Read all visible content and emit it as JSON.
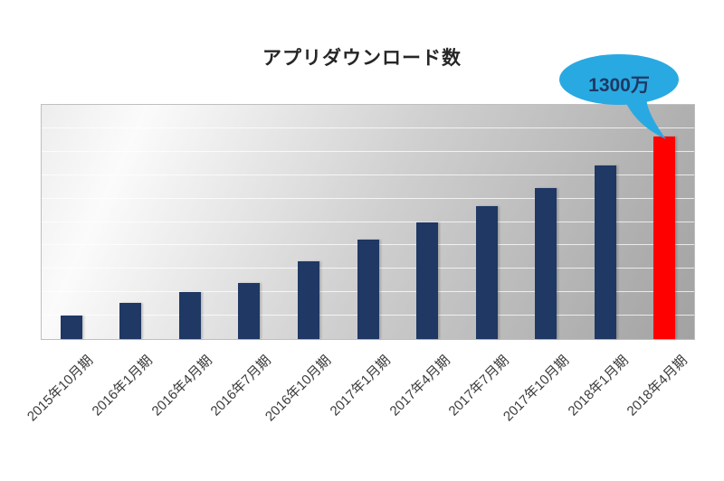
{
  "chart_data": {
    "type": "bar",
    "title": "アプリダウンロード数",
    "xlabel": "",
    "ylabel": "",
    "unit": "万",
    "categories": [
      "2015年10月期",
      "2016年1月期",
      "2016年4月期",
      "2016年7月期",
      "2016年10月期",
      "2017年1月期",
      "2017年4月期",
      "2017年7月期",
      "2017年10月期",
      "2018年1月期",
      "2018年4月期"
    ],
    "values": [
      150,
      230,
      300,
      360,
      500,
      640,
      750,
      850,
      970,
      1110,
      1300
    ],
    "ylim": [
      0,
      1500
    ],
    "gridline_count": 10,
    "grid": true,
    "legend_position": "none",
    "bar_color_default": "#1f3864",
    "bar_color_highlight": "#ff0000",
    "highlight_index": 10,
    "annotation": {
      "text": "1300万",
      "target_index": 10,
      "bubble_color": "#29a9e1",
      "text_color": "#1f3864"
    }
  }
}
